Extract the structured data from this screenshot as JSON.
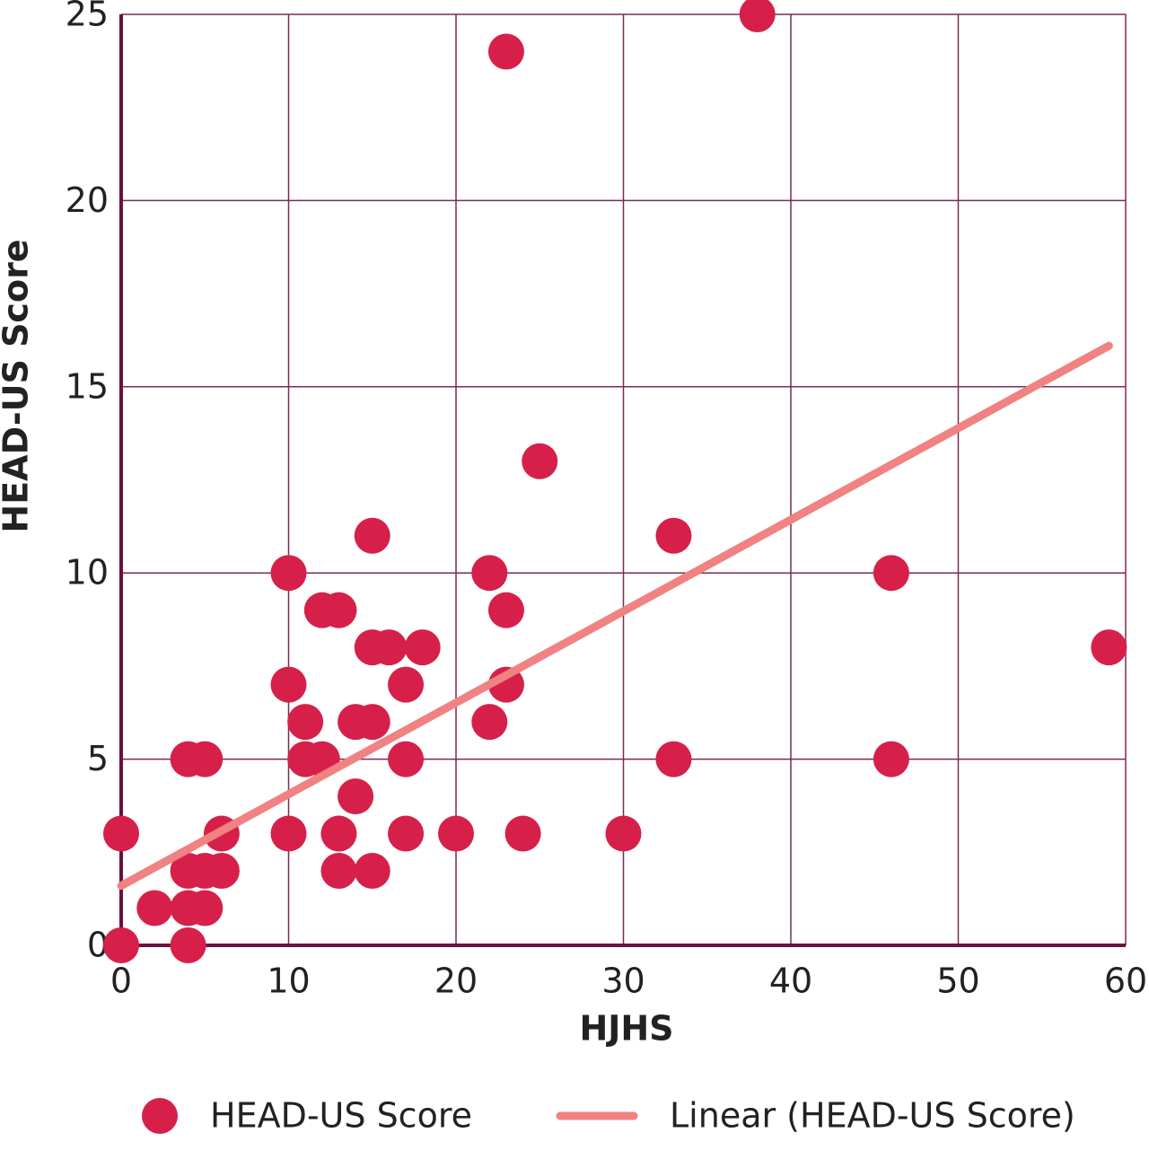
{
  "chart_data": {
    "type": "scatter",
    "xlabel": "HJHS",
    "ylabel": "HEAD-US Score",
    "xlim": [
      0,
      60
    ],
    "ylim": [
      0,
      25
    ],
    "xticks": [
      0,
      10,
      20,
      30,
      40,
      50,
      60
    ],
    "yticks": [
      0,
      5,
      10,
      15,
      20,
      25
    ],
    "grid": true,
    "axis_color": "#6b1040",
    "grid_color": "#7a2a55",
    "series": [
      {
        "name": "HEAD-US Score",
        "type": "scatter",
        "color": "#d6204a",
        "x": [
          0,
          0,
          2,
          4,
          5,
          4,
          5,
          6,
          4,
          5,
          4,
          6,
          10,
          10,
          10,
          11,
          11,
          12,
          13,
          12,
          13,
          13,
          14,
          15,
          14,
          15,
          16,
          18,
          15,
          15,
          17,
          17,
          17,
          20,
          22,
          22,
          23,
          23,
          23,
          24,
          25,
          30,
          33,
          33,
          38,
          46,
          46,
          59
        ],
        "values": [
          3,
          0,
          1,
          5,
          5,
          2,
          2,
          2,
          1,
          1,
          0,
          3,
          10,
          7,
          3,
          6,
          5,
          9,
          9,
          5,
          3,
          2,
          6,
          6,
          4,
          8,
          8,
          8,
          11,
          2,
          7,
          5,
          3,
          3,
          10,
          6,
          24,
          9,
          7,
          3,
          13,
          3,
          11,
          5,
          25,
          10,
          5,
          8
        ]
      },
      {
        "name": "Linear (HEAD-US Score)",
        "type": "line",
        "color": "#f08282",
        "x": [
          0,
          59
        ],
        "values": [
          1.6,
          16.1
        ]
      }
    ]
  }
}
